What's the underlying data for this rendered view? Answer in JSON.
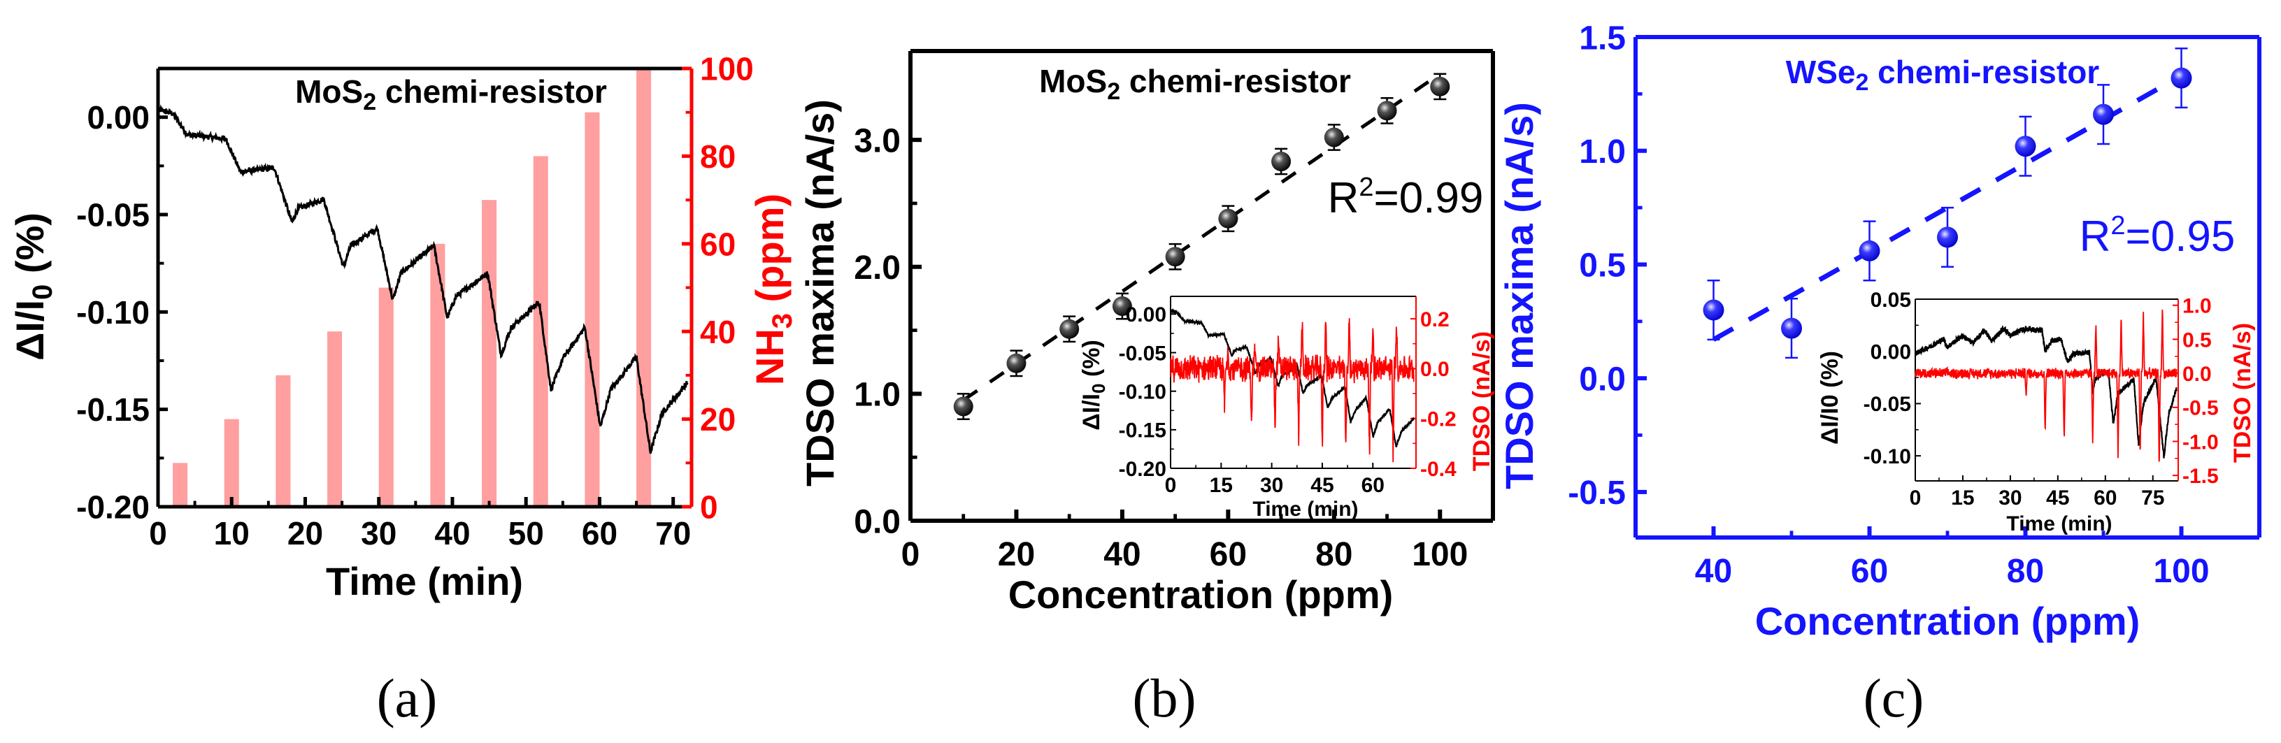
{
  "colors": {
    "black": "#000000",
    "red": "#ff0000",
    "bar": "#ff9f9f",
    "blue": "#1414ff"
  },
  "captions": {
    "a": "(a)",
    "b": "(b)",
    "c": "(c)"
  },
  "chart_data": [
    {
      "panel": "a",
      "type": "line+bar",
      "title": {
        "main": "MoS",
        "sub": "2",
        "rest": " chemi-resistor"
      },
      "xlabel": "Time (min)",
      "ylabel": {
        "main": "ΔI/I",
        "sub": "0",
        "rest": " (%)"
      },
      "y2label": {
        "main": "NH",
        "sub": "3",
        "rest": " (ppm)"
      },
      "xlim": [
        0,
        72.5
      ],
      "ylim": [
        -0.2,
        0.025
      ],
      "y2lim": [
        0,
        100
      ],
      "xticks": {
        "values": [
          0,
          10,
          20,
          30,
          40,
          50,
          60,
          70
        ],
        "labels": [
          "0",
          "10",
          "20",
          "30",
          "40",
          "50",
          "60",
          "70"
        ]
      },
      "yticks": {
        "values": [
          0,
          -0.05,
          -0.1,
          -0.15,
          -0.2
        ],
        "labels": [
          "0.00",
          "-0.05",
          "-0.10",
          "-0.15",
          "-0.20"
        ]
      },
      "y2ticks": {
        "values": [
          0,
          20,
          40,
          60,
          80,
          100
        ],
        "labels": [
          "0",
          "20",
          "40",
          "60",
          "80",
          "100"
        ]
      },
      "bars": {
        "x": [
          3,
          10,
          17,
          24,
          31,
          38,
          45,
          52,
          59,
          66
        ],
        "values": [
          10,
          20,
          30,
          40,
          50,
          60,
          70,
          80,
          90,
          100
        ],
        "width": 2
      },
      "curve": [
        [
          0,
          0.004
        ],
        [
          2,
          0.002
        ],
        [
          4,
          -0.009
        ],
        [
          9.2,
          -0.011
        ],
        [
          11.2,
          -0.028
        ],
        [
          15.8,
          -0.026
        ],
        [
          18.2,
          -0.054
        ],
        [
          19,
          -0.047
        ],
        [
          22.5,
          -0.042
        ],
        [
          25.2,
          -0.077
        ],
        [
          26.2,
          -0.066
        ],
        [
          29.8,
          -0.057
        ],
        [
          31.9,
          -0.094
        ],
        [
          33,
          -0.08
        ],
        [
          37.5,
          -0.066
        ],
        [
          39.3,
          -0.103
        ],
        [
          40.5,
          -0.092
        ],
        [
          44.8,
          -0.08
        ],
        [
          46.6,
          -0.122
        ],
        [
          48,
          -0.108
        ],
        [
          51.8,
          -0.095
        ],
        [
          53.4,
          -0.14
        ],
        [
          55,
          -0.124
        ],
        [
          58,
          -0.108
        ],
        [
          60.1,
          -0.159
        ],
        [
          61.5,
          -0.14
        ],
        [
          65,
          -0.123
        ],
        [
          66.9,
          -0.172
        ],
        [
          68.5,
          -0.152
        ],
        [
          72,
          -0.136
        ]
      ]
    },
    {
      "panel": "b",
      "type": "scatter",
      "title": {
        "main": "MoS",
        "sub": "2",
        "rest": " chemi-resistor"
      },
      "xlabel": "Concentration (ppm)",
      "ylabel": "TDSO maxima (nA/s)",
      "r2": {
        "main": "R",
        "sup": "2",
        "rest": "=0.99"
      },
      "xlim": [
        0,
        110
      ],
      "ylim": [
        0,
        3.7
      ],
      "xticks": {
        "values": [
          0,
          20,
          40,
          60,
          80,
          100
        ],
        "labels": [
          "0",
          "20",
          "40",
          "60",
          "80",
          "100"
        ]
      },
      "yticks": {
        "values": [
          0,
          1,
          2,
          3
        ],
        "labels": [
          "0.0",
          "1.0",
          "2.0",
          "3.0"
        ]
      },
      "x": [
        10,
        20,
        30,
        40,
        50,
        60,
        70,
        80,
        90,
        100
      ],
      "y": [
        0.9,
        1.24,
        1.51,
        1.69,
        2.08,
        2.38,
        2.83,
        3.02,
        3.23,
        3.42
      ],
      "yerr": [
        0.1,
        0.1,
        0.1,
        0.1,
        0.1,
        0.1,
        0.1,
        0.1,
        0.1,
        0.1
      ],
      "fit": {
        "x": [
          10,
          100
        ],
        "y": [
          0.95,
          3.52
        ]
      },
      "inset": {
        "xlabel": "Time (min)",
        "ylabel": {
          "main": "ΔI/I",
          "sub": "0",
          "rest": " (%)"
        },
        "y2label": "TDSO (nA/s)",
        "xlim": [
          0,
          72.8
        ],
        "ylim": [
          -0.2,
          0.023
        ],
        "y2lim": [
          -0.4,
          0.29
        ],
        "xticks": {
          "values": [
            0,
            15,
            30,
            45,
            60
          ],
          "labels": [
            "0",
            "15",
            "30",
            "45",
            "60"
          ]
        },
        "yticks": {
          "values": [
            0,
            -0.05,
            -0.1,
            -0.15,
            -0.2
          ],
          "labels": [
            "0.00",
            "-0.05",
            "-0.10",
            "-0.15",
            "-0.20"
          ]
        },
        "y2ticks": {
          "values": [
            0.2,
            0,
            -0.2,
            -0.4
          ],
          "labels": [
            "0.2",
            "0.0",
            "-0.2",
            "-0.4"
          ]
        },
        "tdso_noise": 0.06,
        "tdso_spikes": [
          [
            16,
            -0.16
          ],
          [
            17,
            0.1
          ],
          [
            24,
            -0.25
          ],
          [
            25,
            0.08
          ],
          [
            31,
            -0.25
          ],
          [
            32,
            0.12
          ],
          [
            38,
            -0.28
          ],
          [
            39,
            0.2
          ],
          [
            45,
            -0.31
          ],
          [
            46,
            0.2
          ],
          [
            52,
            -0.33
          ],
          [
            53,
            0.2
          ],
          [
            59,
            -0.35
          ],
          [
            60,
            0.18
          ],
          [
            66,
            -0.35
          ],
          [
            67,
            0.2
          ]
        ]
      }
    },
    {
      "panel": "c",
      "type": "scatter",
      "title": {
        "main": "WSe",
        "sub": "2",
        "rest": " chemi-resistor"
      },
      "xlabel": "Concentration (ppm)",
      "ylabel": "TDSO maxima (nA/s)",
      "r2": {
        "main": "R",
        "sup": "2",
        "rest": "=0.95"
      },
      "xlim": [
        30,
        110
      ],
      "ylim": [
        -0.7,
        1.5
      ],
      "xticks": {
        "values": [
          40,
          60,
          80,
          100
        ],
        "labels": [
          "40",
          "60",
          "80",
          "100"
        ]
      },
      "yticks": {
        "values": [
          -0.5,
          0,
          0.5,
          1,
          1.5
        ],
        "labels": [
          "-0.5",
          "0.0",
          "0.5",
          "1.0",
          "1.5"
        ]
      },
      "x": [
        40,
        50,
        60,
        70,
        80,
        90,
        100
      ],
      "y": [
        0.3,
        0.22,
        0.56,
        0.62,
        1.02,
        1.16,
        1.32
      ],
      "yerr": [
        0.13,
        0.13,
        0.13,
        0.13,
        0.13,
        0.13,
        0.13
      ],
      "fit": {
        "x": [
          40,
          100
        ],
        "y": [
          0.17,
          1.33
        ]
      },
      "inset": {
        "xlabel": "Time (min)",
        "ylabel": "ΔI/I0 (%)",
        "y2label": "TDSO (nA/s)",
        "xlim": [
          0,
          83
        ],
        "ylim": [
          -0.124,
          0.05
        ],
        "y2lim": [
          -1.58,
          1.09
        ],
        "xticks": {
          "values": [
            0,
            15,
            30,
            45,
            60,
            75
          ],
          "labels": [
            "0",
            "15",
            "30",
            "45",
            "60",
            "75"
          ]
        },
        "yticks": {
          "values": [
            0.05,
            0,
            -0.05,
            -0.1
          ],
          "labels": [
            "0.05",
            "0.00",
            "-0.05",
            "-0.10"
          ]
        },
        "y2ticks": {
          "values": [
            1,
            0.5,
            0,
            -0.5,
            -1,
            -1.5
          ],
          "labels": [
            "1.0",
            "0.5",
            "0.0",
            "-0.5",
            "-1.0",
            "-1.5"
          ]
        },
        "curve": [
          [
            0,
            -0.002
          ],
          [
            5,
            0.005
          ],
          [
            9,
            0.012
          ],
          [
            10,
            0.004
          ],
          [
            15,
            0.015
          ],
          [
            18,
            0.008
          ],
          [
            22,
            0.02
          ],
          [
            24,
            0.01
          ],
          [
            28,
            0.022
          ],
          [
            30,
            0.015
          ],
          [
            33,
            0.02
          ],
          [
            36,
            0.022
          ],
          [
            38,
            0.02
          ],
          [
            40,
            0.02
          ],
          [
            41,
            0
          ],
          [
            43,
            0.01
          ],
          [
            46,
            0.012
          ],
          [
            48,
            -0.01
          ],
          [
            50,
            -0.002
          ],
          [
            55,
            -0.001
          ],
          [
            56,
            -0.04
          ],
          [
            57,
            -0.025
          ],
          [
            60,
            -0.02
          ],
          [
            61,
            -0.02
          ],
          [
            62.5,
            -0.07
          ],
          [
            64,
            -0.04
          ],
          [
            69,
            -0.027
          ],
          [
            70.5,
            -0.09
          ],
          [
            72,
            -0.05
          ],
          [
            76,
            -0.025
          ],
          [
            78.5,
            -0.101
          ],
          [
            80,
            -0.06
          ],
          [
            83,
            -0.03
          ]
        ],
        "tdso_noise": 0.09,
        "tdso_spikes": [
          [
            35,
            -0.3
          ],
          [
            41,
            -0.9
          ],
          [
            47,
            -1.0
          ],
          [
            56,
            -1.0
          ],
          [
            57,
            0.75
          ],
          [
            64,
            -1.2
          ],
          [
            65,
            0.85
          ],
          [
            71,
            -1.25
          ],
          [
            72,
            0.9
          ],
          [
            77,
            -1.45
          ],
          [
            78,
            1.0
          ]
        ]
      }
    }
  ]
}
